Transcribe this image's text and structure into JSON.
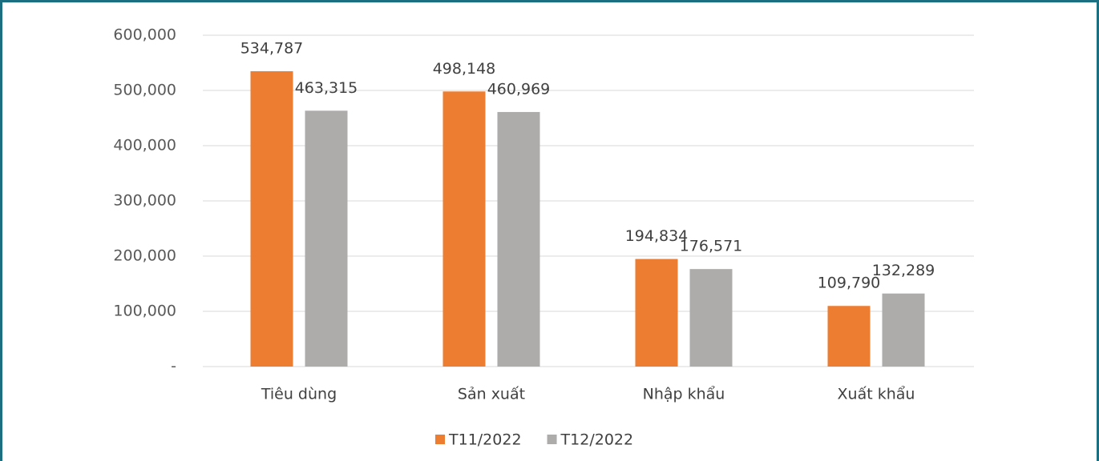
{
  "chart_data": {
    "type": "bar",
    "categories": [
      "Tiêu dùng",
      "Sản xuất",
      "Nhập khẩu",
      "Xuất khẩu"
    ],
    "series": [
      {
        "name": "T11/2022",
        "color": "#ed7d31",
        "values": [
          534787,
          498148,
          194834,
          109790
        ],
        "value_labels": [
          "534,787",
          "498,148",
          "194,834",
          "109,790"
        ]
      },
      {
        "name": "T12/2022",
        "color": "#aeabab",
        "values": [
          463315,
          460969,
          176571,
          132289
        ],
        "value_labels": [
          "463,315",
          "460,969",
          "176,571",
          "132,289"
        ]
      }
    ],
    "ylim": [
      0,
      600000
    ],
    "yticks": [
      {
        "value": 0,
        "label": "-"
      },
      {
        "value": 100000,
        "label": "100,000"
      },
      {
        "value": 200000,
        "label": "200,000"
      },
      {
        "value": 300000,
        "label": "300,000"
      },
      {
        "value": 400000,
        "label": "400,000"
      },
      {
        "value": 500000,
        "label": "500,000"
      },
      {
        "value": 600000,
        "label": "600,000"
      }
    ],
    "grid": true,
    "legend": "bottom"
  }
}
